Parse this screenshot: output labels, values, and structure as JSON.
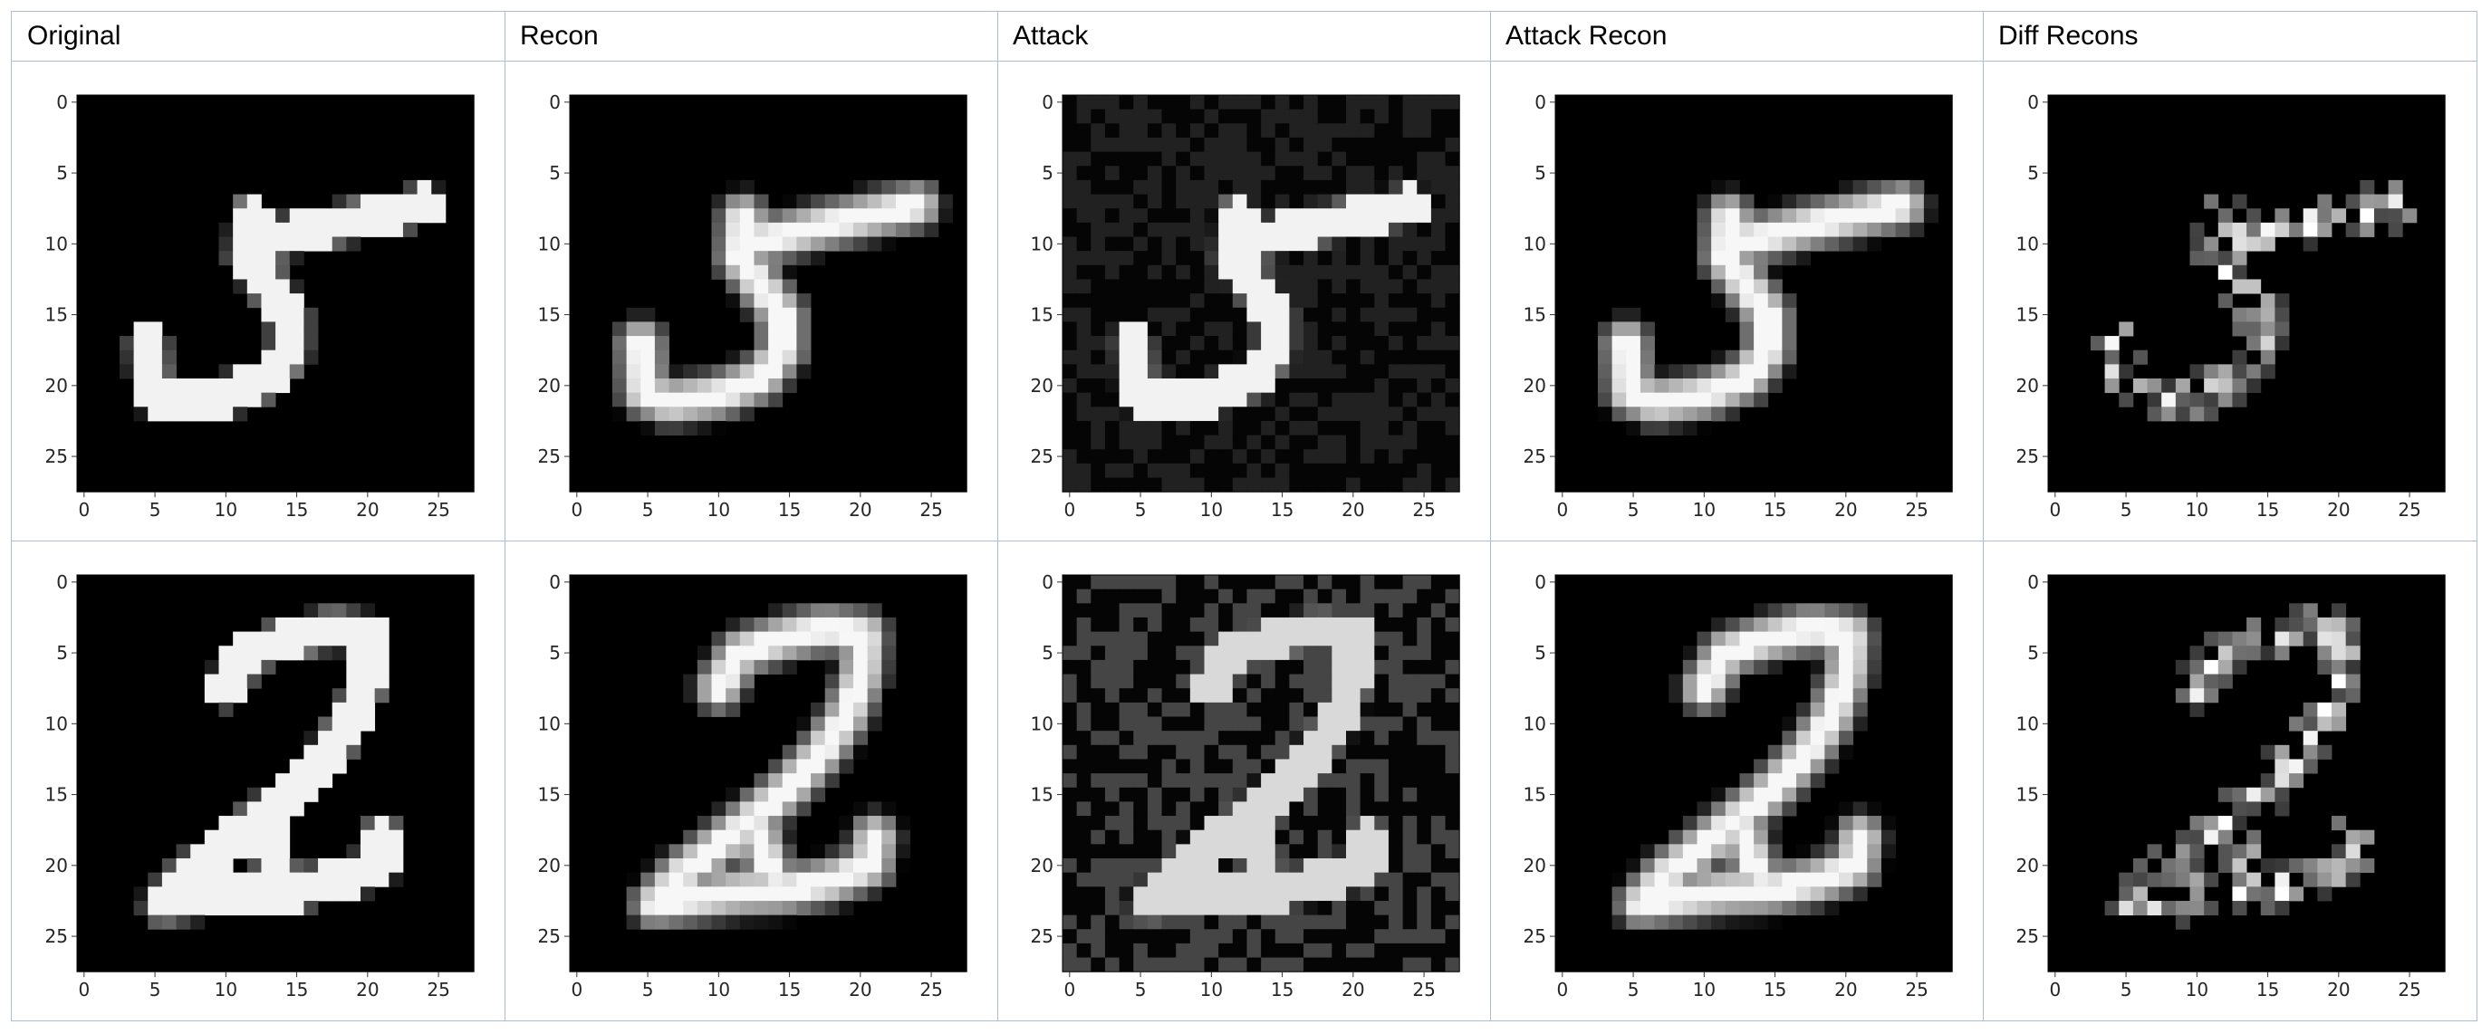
{
  "columns": [
    {
      "title": "Original",
      "kind": "orig"
    },
    {
      "title": "Recon",
      "kind": "recon"
    },
    {
      "title": "Attack",
      "kind": "attack"
    },
    {
      "title": "Attack Recon",
      "kind": "recon"
    },
    {
      "title": "Diff Recons",
      "kind": "diff"
    }
  ],
  "rows": [
    {
      "digit": "5"
    },
    {
      "digit": "2"
    }
  ],
  "axes": {
    "x_ticks": [
      "0",
      "5",
      "10",
      "15",
      "20",
      "25"
    ],
    "y_ticks": [
      "0",
      "5",
      "10",
      "15",
      "20",
      "25"
    ],
    "xlim": [
      -0.5,
      27.5
    ],
    "ylim": [
      27.5,
      -0.5
    ]
  },
  "colors": {
    "border": "#aebdd2",
    "image_background": "#000000",
    "image_foreground": "#ffffff"
  }
}
